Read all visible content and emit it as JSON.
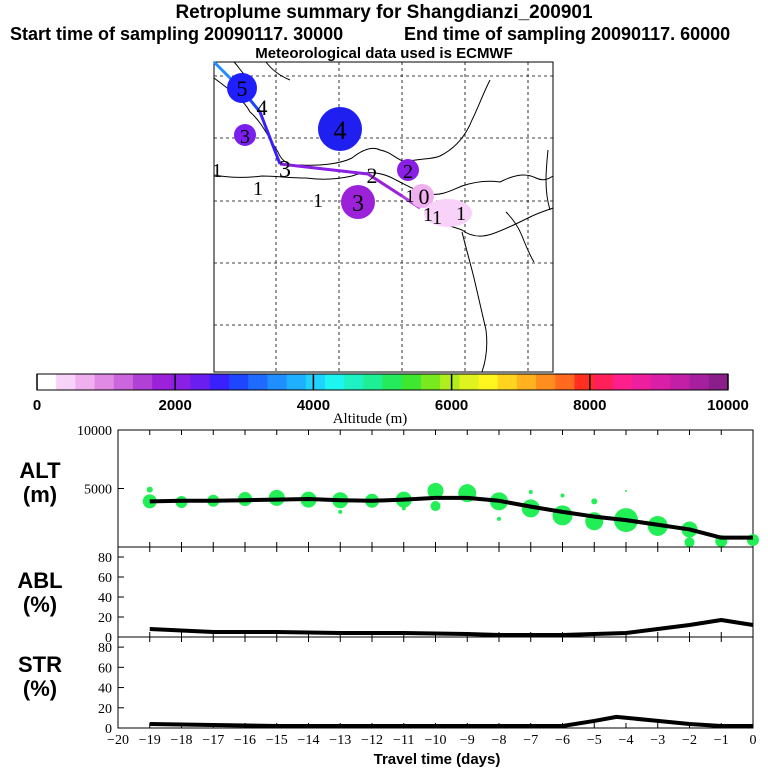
{
  "header": {
    "title": "Retroplume summary for Shangdianzi_200901",
    "start": "Start time of sampling 20090117. 30000",
    "end": "End time of sampling 20090117. 60000",
    "met": "Meteorological data used is ECMWF"
  },
  "colors": {
    "palette": [
      "#ffffff",
      "#f9d2f9",
      "#f0b0f0",
      "#e08ae6",
      "#cc66dd",
      "#b040d6",
      "#9b22d9",
      "#8a1fe6",
      "#6a1ff0",
      "#3a1fff",
      "#1f46ff",
      "#1f6aff",
      "#1f8eff",
      "#1fb1ff",
      "#1fd2ff",
      "#1ff5f0",
      "#1ff2c2",
      "#1fef94",
      "#24ea5c",
      "#3ee830",
      "#7ae81f",
      "#b0ee1f",
      "#e0f21f",
      "#fff51f",
      "#ffd41f",
      "#ffb11f",
      "#ff8e1f",
      "#ff6a1f",
      "#ff2e1f",
      "#ff1f5a",
      "#ff1f8c",
      "#ee1f9e",
      "#d81fa6",
      "#c01fa6",
      "#a61f9e",
      "#8a1f8a"
    ],
    "green_marker": "#22ee55"
  },
  "chart_data": [
    {
      "type": "map",
      "title": "Retroplume summary for Shangdianzi_200901",
      "plume_labels": [
        {
          "text": "5",
          "color": "#3a1fff"
        },
        {
          "text": "4",
          "color": "#1f1ff0"
        },
        {
          "text": "3",
          "color": "#7a1ff0"
        },
        {
          "text": "2",
          "color": "#8a1fe6"
        },
        {
          "text": "3",
          "color": "#9b22d9"
        },
        {
          "text": "0",
          "color": "#f0b0f0"
        }
      ],
      "extra_labels": [
        "1",
        "1",
        "1",
        "3",
        "2",
        "4",
        "1",
        "1",
        "1",
        "1"
      ]
    },
    {
      "type": "colorbar",
      "xlabel": "Altitude (m)",
      "ticks": [
        0,
        2000,
        4000,
        6000,
        8000,
        10000
      ],
      "range": [
        0,
        10000
      ]
    },
    {
      "type": "line+scatter",
      "ylabel": [
        "ALT",
        "(m)"
      ],
      "yticks": [
        5000,
        10000
      ],
      "ylim": [
        0,
        10000
      ],
      "x": [
        -19,
        -18,
        -17,
        -16,
        -15,
        -14,
        -13,
        -12,
        -11,
        -10,
        -9,
        -8,
        -7,
        -6,
        -5,
        -4,
        -3,
        -2,
        -1,
        0
      ],
      "line": [
        3900,
        3950,
        3950,
        4000,
        4050,
        4100,
        4000,
        3950,
        4050,
        4200,
        4200,
        3950,
        3450,
        3000,
        2600,
        2300,
        1900,
        1500,
        800,
        800
      ],
      "bubbles": [
        {
          "x": -19,
          "y": 3900,
          "r": 7
        },
        {
          "x": -19,
          "y": 4900,
          "r": 3
        },
        {
          "x": -18,
          "y": 3850,
          "r": 6
        },
        {
          "x": -17,
          "y": 3950,
          "r": 6
        },
        {
          "x": -16,
          "y": 4100,
          "r": 7
        },
        {
          "x": -15,
          "y": 4200,
          "r": 8
        },
        {
          "x": -14,
          "y": 4050,
          "r": 8
        },
        {
          "x": -13,
          "y": 4000,
          "r": 8
        },
        {
          "x": -13,
          "y": 3000,
          "r": 2
        },
        {
          "x": -12,
          "y": 3950,
          "r": 7
        },
        {
          "x": -11,
          "y": 4050,
          "r": 8
        },
        {
          "x": -11,
          "y": 3300,
          "r": 2
        },
        {
          "x": -10,
          "y": 4800,
          "r": 8
        },
        {
          "x": -10,
          "y": 3500,
          "r": 5
        },
        {
          "x": -9,
          "y": 4600,
          "r": 9
        },
        {
          "x": -8,
          "y": 3900,
          "r": 9
        },
        {
          "x": -8,
          "y": 2400,
          "r": 2
        },
        {
          "x": -7,
          "y": 3300,
          "r": 9
        },
        {
          "x": -7,
          "y": 4700,
          "r": 2
        },
        {
          "x": -6,
          "y": 2700,
          "r": 10
        },
        {
          "x": -6,
          "y": 4400,
          "r": 2
        },
        {
          "x": -5,
          "y": 2200,
          "r": 9
        },
        {
          "x": -5,
          "y": 3900,
          "r": 3
        },
        {
          "x": -4,
          "y": 2300,
          "r": 12
        },
        {
          "x": -4,
          "y": 4800,
          "r": 1
        },
        {
          "x": -3,
          "y": 1800,
          "r": 10
        },
        {
          "x": -2,
          "y": 1500,
          "r": 8
        },
        {
          "x": -2,
          "y": 400,
          "r": 5
        },
        {
          "x": -1,
          "y": 500,
          "r": 6
        },
        {
          "x": 0,
          "y": 600,
          "r": 6
        }
      ]
    },
    {
      "type": "line",
      "ylabel": [
        "ABL",
        "(%)"
      ],
      "yticks": [
        0,
        20,
        40,
        60,
        80
      ],
      "ylim": [
        0,
        90
      ],
      "x": [
        -19,
        -17,
        -15,
        -13,
        -11,
        -9,
        -8,
        -6,
        -5,
        -4,
        -3,
        -2,
        -1,
        0
      ],
      "values": [
        8,
        5,
        5,
        4,
        4,
        3,
        2,
        2,
        3,
        4,
        8,
        12,
        17,
        12
      ]
    },
    {
      "type": "line",
      "ylabel": [
        "STR",
        "(%)"
      ],
      "yticks": [
        0,
        20,
        40,
        60,
        80
      ],
      "ylim": [
        0,
        90
      ],
      "x": [
        -19,
        -17,
        -15,
        -13,
        -11,
        -9,
        -7,
        -6,
        -5,
        -4.3,
        -3,
        -2,
        -1,
        0
      ],
      "values": [
        4,
        3,
        2,
        2,
        2,
        2,
        2,
        2,
        7,
        11,
        7,
        4,
        2,
        2
      ],
      "xlabel": "Travel time (days)",
      "xticks": [
        -20,
        -19,
        -18,
        -17,
        -16,
        -15,
        -14,
        -13,
        -12,
        -11,
        -10,
        -9,
        -8,
        -7,
        -6,
        -5,
        -4,
        -3,
        -2,
        -1,
        0
      ],
      "xlim": [
        -20,
        0
      ]
    }
  ]
}
